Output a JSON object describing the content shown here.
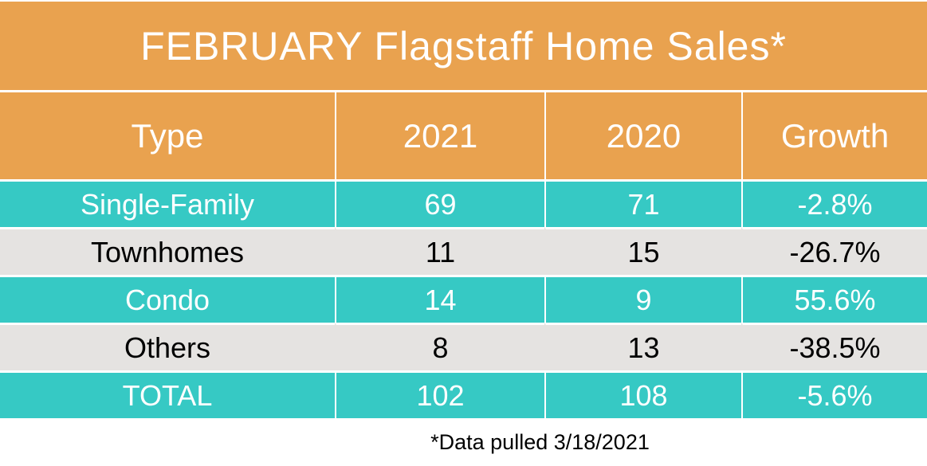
{
  "title": "FEBRUARY Flagstaff Home Sales*",
  "footnote": "*Data pulled 3/18/2021",
  "columns": [
    "Type",
    "2021",
    "2020",
    "Growth"
  ],
  "rows": [
    {
      "style": "teal",
      "cells": [
        "Single-Family",
        "69",
        "71",
        "-2.8%"
      ]
    },
    {
      "style": "gray",
      "cells": [
        "Townhomes",
        "11",
        "15",
        "-26.7%"
      ]
    },
    {
      "style": "teal",
      "cells": [
        "Condo",
        "14",
        "9",
        "55.6%"
      ]
    },
    {
      "style": "gray",
      "cells": [
        "Others",
        "8",
        "13",
        "-38.5%"
      ]
    },
    {
      "style": "teal",
      "cells": [
        "TOTAL",
        "102",
        "108",
        "-5.6%"
      ]
    }
  ],
  "colors": {
    "orange": "#E9A24F",
    "teal": "#36C9C4",
    "gray": "#E5E3E1",
    "text_light": "#FFFFFF",
    "text_dark": "#000000"
  },
  "chart_data": {
    "type": "table",
    "title": "FEBRUARY Flagstaff Home Sales*",
    "columns": [
      "Type",
      "2021",
      "2020",
      "Growth"
    ],
    "rows": [
      [
        "Single-Family",
        69,
        71,
        "-2.8%"
      ],
      [
        "Townhomes",
        11,
        15,
        "-26.7%"
      ],
      [
        "Condo",
        14,
        9,
        "55.6%"
      ],
      [
        "Others",
        8,
        13,
        "-38.5%"
      ],
      [
        "TOTAL",
        102,
        108,
        "-5.6%"
      ]
    ],
    "footnote": "*Data pulled 3/18/2021",
    "layout": {
      "banded_rows": [
        "teal",
        "gray",
        "teal",
        "gray",
        "teal"
      ],
      "header_fill": "#E9A24F",
      "teal_fill": "#36C9C4",
      "gray_fill": "#E5E3E1",
      "grid_color": "#FFFFFF"
    }
  }
}
